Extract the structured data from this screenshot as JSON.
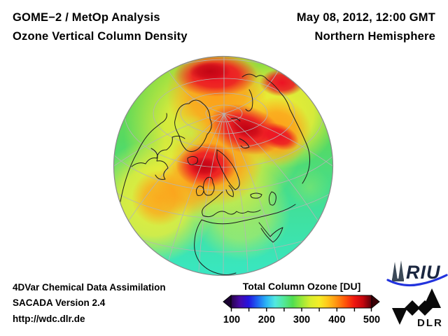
{
  "header": {
    "product_line1": "GOME−2 / MetOp Analysis",
    "product_line2": "Ozone Vertical Column Density",
    "datetime": "May 08, 2012, 12:00 GMT",
    "region": "Northern Hemisphere"
  },
  "globe": {
    "projection": "orthographic-northern-hemisphere",
    "outline_color": "#8a8a8a",
    "graticule_color": "#b5b5b5",
    "coastline_color": "#1c1c1c",
    "field_colors": {
      "low": "#38e7c4",
      "mid": "#50d84e",
      "elevated": "#f2ee34",
      "high": "#ff9a18",
      "very_high": "#ec1224",
      "extreme": "#c00414"
    }
  },
  "colorbar": {
    "title": "Total Column Ozone [DU]",
    "min": 100,
    "max": 500,
    "tick_step": 50,
    "tick_labels": [
      "100",
      "200",
      "300",
      "400",
      "500"
    ],
    "gradient": [
      "#270347",
      "#4709a8",
      "#2414e0",
      "#1e64f2",
      "#2ab4f5",
      "#52e8e0",
      "#52e89a",
      "#50dd50",
      "#96e83a",
      "#d8ee2e",
      "#f4ee28",
      "#ffc61c",
      "#ff9212",
      "#ff5408",
      "#f01810",
      "#c4060e",
      "#58000a"
    ],
    "left_arrow_color": "#1c0333",
    "right_arrow_color": "#3a0006"
  },
  "footer": {
    "line1": "4DVar Chemical Data Assimilation",
    "line2": "SACADA Version 2.4",
    "line3": "http://wdc.dlr.de"
  },
  "logos": {
    "riu": "RIU",
    "dlr": "DLR"
  }
}
